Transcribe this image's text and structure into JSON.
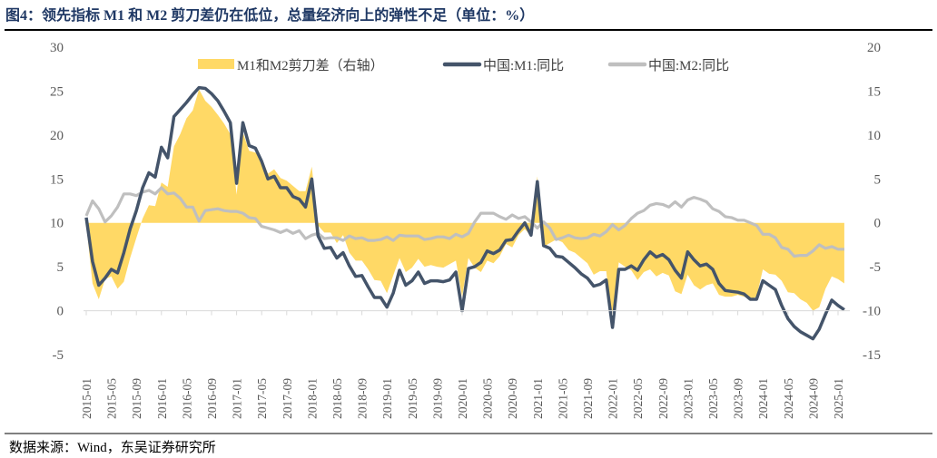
{
  "header": {
    "title": "图4：领先指标 M1 和 M2 剪刀差仍在低位，总量经济向上的弹性不足（单位：%）"
  },
  "footer": {
    "source": "数据来源：Wind，东吴证券研究所"
  },
  "chart_data": {
    "type": "line",
    "title": "",
    "xlabel": "",
    "ylabel": "",
    "start_month": "2015-01",
    "x_tick_labels": [
      "2015-01",
      "2015-05",
      "2015-09",
      "2016-01",
      "2016-05",
      "2016-09",
      "2017-01",
      "2017-05",
      "2017-09",
      "2018-01",
      "2018-05",
      "2018-09",
      "2019-01",
      "2019-05",
      "2019-09",
      "2020-01",
      "2020-05",
      "2020-09",
      "2021-01",
      "2021-05",
      "2021-09",
      "2022-01",
      "2022-05",
      "2022-09",
      "2023-01",
      "2023-05",
      "2023-09",
      "2024-01",
      "2024-05",
      "2024-09",
      "2025-01"
    ],
    "left_axis": {
      "ylim": [
        -5,
        30
      ],
      "ticks": [
        "30",
        "25",
        "20",
        "15",
        "10",
        "5",
        "0",
        "-5"
      ]
    },
    "right_axis": {
      "ylim": [
        -15,
        20
      ],
      "ticks": [
        "20",
        "15",
        "10",
        "5",
        "0",
        "-5",
        "-10",
        "-15"
      ]
    },
    "legend_position": "top",
    "grid": false,
    "series": [
      {
        "name": "M1和M2剪刀差（右轴）",
        "type": "area",
        "axis": "right",
        "color": "#FFD966",
        "values": [
          -0.2,
          -6.9,
          -8.7,
          -6.4,
          -6.1,
          -7.5,
          -6.7,
          -4.0,
          -1.7,
          0.5,
          2.0,
          1.9,
          4.6,
          4.1,
          8.7,
          10.1,
          11.9,
          12.8,
          15.2,
          13.9,
          13.2,
          12.3,
          11.3,
          10.1,
          3.2,
          10.3,
          8.2,
          8.0,
          7.4,
          5.6,
          6.1,
          5.1,
          4.8,
          4.2,
          3.6,
          3.6,
          6.4,
          -0.3,
          -1.1,
          -1.1,
          -2.3,
          -1.4,
          -3.4,
          -4.3,
          -4.3,
          -5.3,
          -6.5,
          -6.6,
          -8.0,
          -6.0,
          -4.0,
          -5.6,
          -5.1,
          -4.1,
          -5.0,
          -4.8,
          -5.0,
          -5.1,
          -4.7,
          -4.3,
          -8.4,
          -4.0,
          -5.1,
          -5.6,
          -4.3,
          -4.6,
          -3.8,
          -2.4,
          -2.8,
          -1.4,
          -0.7,
          -1.5,
          5.3,
          -2.7,
          -2.3,
          -1.9,
          -2.2,
          -3.1,
          -3.4,
          -4.0,
          -4.6,
          -5.9,
          -5.5,
          -5.5,
          -11.7,
          -4.5,
          -5.0,
          -5.4,
          -6.5,
          -5.6,
          -5.3,
          -6.1,
          -5.7,
          -6.0,
          -7.8,
          -8.1,
          -5.9,
          -7.1,
          -7.6,
          -7.1,
          -6.9,
          -8.2,
          -8.4,
          -8.4,
          -8.2,
          -8.4,
          -8.7,
          -8.4,
          -5.3,
          -5.8,
          -5.9,
          -6.6,
          -7.9,
          -8.0,
          -8.7,
          -9.1,
          -10.0,
          -9.6,
          -7.5,
          -6.1,
          -6.4,
          -6.9
        ]
      },
      {
        "name": "中国:M1:同比",
        "type": "line",
        "axis": "left",
        "color": "#44546A",
        "values": [
          10.6,
          5.6,
          2.9,
          3.7,
          4.7,
          4.3,
          6.6,
          9.3,
          11.4,
          14.0,
          15.7,
          15.2,
          18.6,
          17.4,
          22.1,
          22.9,
          23.7,
          24.6,
          25.4,
          25.3,
          24.7,
          23.9,
          22.7,
          21.4,
          14.5,
          21.4,
          18.8,
          18.5,
          17.0,
          15.0,
          15.3,
          14.0,
          14.0,
          13.0,
          12.7,
          11.8,
          15.0,
          8.5,
          7.1,
          7.2,
          6.0,
          6.6,
          5.1,
          3.9,
          4.0,
          2.7,
          1.5,
          1.5,
          0.4,
          2.0,
          4.6,
          2.9,
          3.4,
          4.4,
          3.1,
          3.4,
          3.4,
          3.3,
          3.5,
          4.4,
          0.0,
          4.8,
          5.0,
          5.5,
          6.8,
          6.5,
          6.9,
          8.0,
          8.1,
          9.1,
          10.0,
          8.6,
          14.7,
          7.4,
          7.1,
          6.2,
          6.1,
          5.5,
          4.9,
          4.2,
          3.7,
          2.8,
          3.0,
          3.5,
          -1.9,
          4.7,
          4.7,
          5.1,
          4.6,
          5.8,
          6.7,
          6.1,
          6.4,
          5.8,
          4.6,
          3.7,
          6.7,
          5.8,
          5.1,
          5.3,
          4.7,
          3.1,
          2.3,
          2.2,
          2.1,
          1.9,
          1.3,
          1.3,
          3.4,
          2.9,
          2.4,
          0.6,
          -0.9,
          -1.8,
          -2.4,
          -2.8,
          -3.2,
          -2.1,
          -0.4,
          1.2,
          0.6,
          0.1
        ]
      },
      {
        "name": "中国:M2:同比",
        "type": "line",
        "axis": "left",
        "color": "#BFBFBF",
        "values": [
          10.8,
          12.5,
          11.6,
          10.1,
          10.8,
          11.8,
          13.3,
          13.3,
          13.1,
          13.5,
          13.7,
          13.3,
          14.0,
          13.3,
          13.4,
          12.8,
          11.8,
          11.8,
          10.2,
          11.4,
          11.5,
          11.6,
          11.4,
          11.3,
          11.3,
          11.1,
          10.6,
          10.5,
          9.6,
          9.4,
          9.2,
          8.9,
          9.2,
          8.8,
          9.1,
          8.2,
          8.6,
          8.8,
          8.2,
          8.3,
          8.3,
          8.0,
          8.5,
          8.2,
          8.3,
          8.0,
          8.0,
          8.1,
          8.4,
          8.0,
          8.6,
          8.5,
          8.5,
          8.5,
          8.1,
          8.2,
          8.4,
          8.4,
          8.2,
          8.7,
          8.4,
          8.8,
          10.1,
          11.1,
          11.1,
          11.1,
          10.7,
          10.4,
          10.9,
          10.5,
          10.7,
          10.1,
          9.4,
          10.1,
          9.4,
          8.1,
          8.3,
          8.6,
          8.3,
          8.2,
          8.3,
          8.7,
          8.5,
          9.0,
          9.8,
          9.2,
          9.7,
          10.5,
          11.1,
          11.4,
          12.0,
          12.2,
          12.1,
          11.8,
          12.4,
          11.8,
          12.6,
          12.9,
          12.7,
          12.4,
          11.6,
          11.3,
          10.7,
          10.6,
          10.3,
          10.3,
          10.0,
          9.7,
          8.7,
          8.7,
          8.3,
          7.2,
          7.0,
          6.2,
          6.3,
          6.3,
          6.8,
          7.5,
          7.1,
          7.3,
          7.0,
          7.0
        ]
      }
    ]
  }
}
